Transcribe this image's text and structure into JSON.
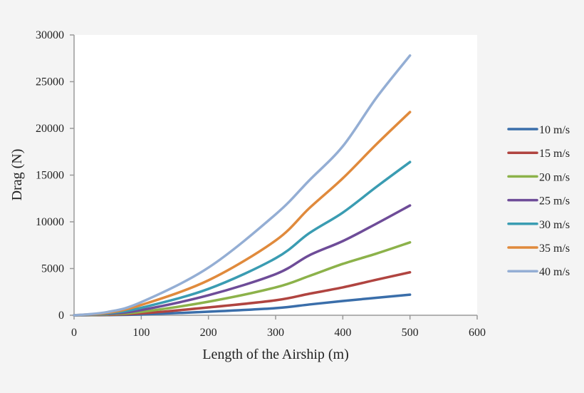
{
  "chart_data": {
    "type": "line",
    "title": "",
    "xlabel": "Length of the Airship (m)",
    "ylabel": "Drag (N)",
    "xlim": [
      0,
      600
    ],
    "ylim": [
      0,
      30000
    ],
    "xticks": [
      0,
      100,
      200,
      300,
      400,
      500,
      600
    ],
    "yticks": [
      0,
      5000,
      10000,
      15000,
      20000,
      25000,
      30000
    ],
    "grid": false,
    "legend_position": "right",
    "x": [
      0,
      50,
      100,
      200,
      300,
      350,
      400,
      450,
      500
    ],
    "series": [
      {
        "name": "10 m/s",
        "color": "#3a6eaa",
        "values": [
          0,
          20,
          90,
          380,
          760,
          1150,
          1530,
          1870,
          2200
        ]
      },
      {
        "name": "15 m/s",
        "color": "#b04440",
        "values": [
          0,
          50,
          200,
          840,
          1600,
          2300,
          2980,
          3800,
          4600
        ]
      },
      {
        "name": "20 m/s",
        "color": "#8cb24a",
        "values": [
          0,
          90,
          360,
          1450,
          2980,
          4200,
          5500,
          6600,
          7800
        ]
      },
      {
        "name": "25 m/s",
        "color": "#6e4c98",
        "values": [
          0,
          140,
          560,
          2140,
          4400,
          6410,
          7940,
          9800,
          11750
        ]
      },
      {
        "name": "30 m/s",
        "color": "#3a9cb2",
        "values": [
          0,
          200,
          800,
          2820,
          6100,
          8780,
          10990,
          13740,
          16400
        ]
      },
      {
        "name": "35 m/s",
        "color": "#e08a3c",
        "values": [
          0,
          270,
          1100,
          3740,
          8000,
          11450,
          14660,
          18300,
          21750
        ]
      },
      {
        "name": "40 m/s",
        "color": "#94aed4",
        "values": [
          0,
          350,
          1400,
          5100,
          10800,
          14430,
          18090,
          23280,
          27800
        ]
      }
    ]
  }
}
